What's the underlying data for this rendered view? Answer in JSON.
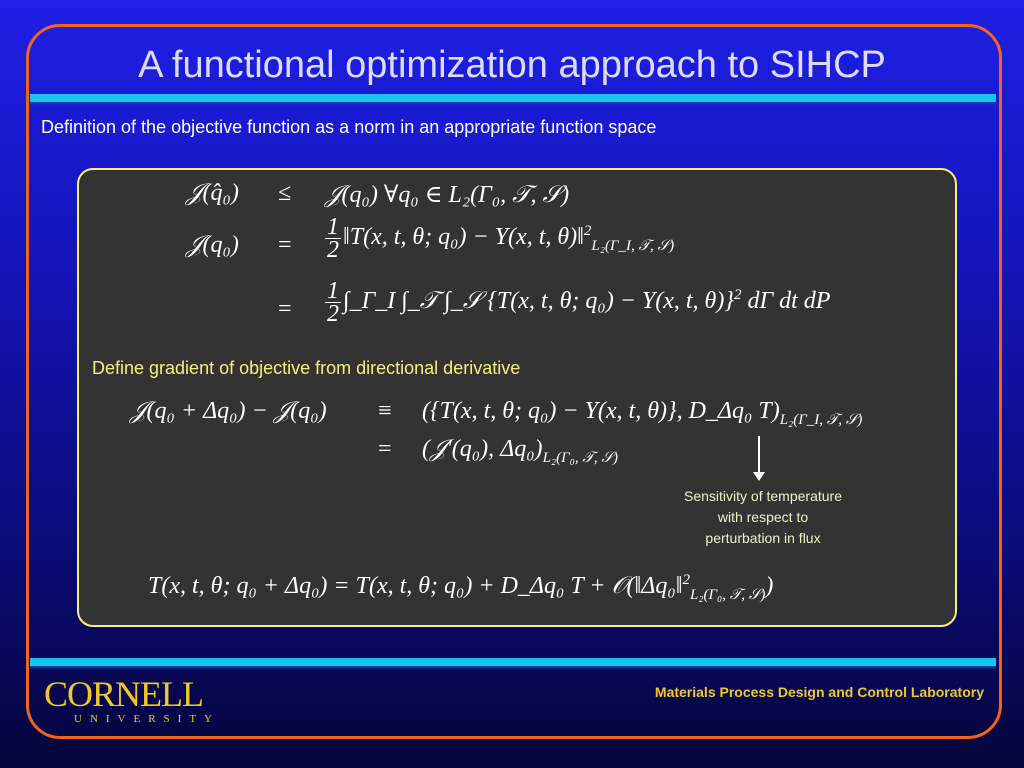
{
  "slide": {
    "title": "A functional optimization approach to SIHCP",
    "subtitle": "Definition of the objective function as a norm in an appropriate function space",
    "section": "Define gradient of objective from directional derivative",
    "note_lines": [
      "Sensitivity of temperature",
      "with respect to",
      "perturbation in flux"
    ],
    "footer_lab": "Materials Process Design and Control Laboratory",
    "logo_text": "CORNELL",
    "logo_sub": "UNIVERSITY",
    "colors": {
      "title": "#dcdcff",
      "frame": "#f0641e",
      "bar": "#19c3f0",
      "box_border": "#f5f07a",
      "box_fill": "#333333",
      "accent": "#f0c828"
    }
  },
  "equations": {
    "e1": {
      "lhs": "𝒥(q̂₀)",
      "rel": "≤",
      "rhs": "𝒥(q₀)   ∀q₀ ∈ L₂(Γ₀, 𝒯, 𝒮)"
    },
    "e2": {
      "lhs": "𝒥(q₀)",
      "rel": "=",
      "num": "1",
      "den": "2",
      "rhs": "‖T(x, t, θ; q₀) − Y(x, t, θ)‖",
      "sup": "2",
      "sub": "L₂(Γ_I, 𝒯, 𝒮)"
    },
    "e3": {
      "rel": "=",
      "num": "1",
      "den": "2",
      "rhs": "∫_Γ_I ∫_𝒯 ∫_𝒮 {T(x, t, θ; q₀) − Y(x, t, θ)}",
      "sup": "2",
      "tail": "dΓ dt dP"
    },
    "e4": {
      "lhs": "𝒥(q₀ + Δq₀) − 𝒥(q₀)",
      "rel": "≡",
      "rhs": "({T(x, t, θ; q₀) − Y(x, t, θ)}, D_Δq₀ T)",
      "sub": "L₂(Γ_I, 𝒯, 𝒮)"
    },
    "e5": {
      "rel": "=",
      "rhs": "(𝒥′(q₀), Δq₀)",
      "sub": "L₂(Γ₀, 𝒯, 𝒮)"
    },
    "e6": {
      "rhs": "T(x, t, θ; q₀ + Δq₀) = T(x, t, θ; q₀) + D_Δq₀ T + 𝒪(‖Δq₀‖",
      "sup": "2",
      "sub": "L₂(Γ₀, 𝒯, 𝒮)",
      "tail": ")"
    }
  }
}
